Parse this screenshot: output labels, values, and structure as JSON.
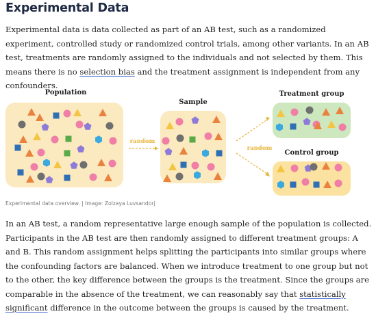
{
  "article": {
    "title": "Experimental Data",
    "intro_before": "Experimental data is data collected as part of an AB test, such as a randomized experiment, controlled study or randomized control trials, among other variants. In an AB test, treatments are randomly assigned to the individuals and not selected by them. This means there is no ",
    "intro_link": "selection bias",
    "intro_after": " and the treatment assignment is independent from any confounders.",
    "body_before": "In an AB test, a random representative large enough sample of the population is collected. Participants in the AB test are then randomly assigned to different treatment groups: A and B. This random assignment helps splitting the participants into similar groups where the confounding factors are balanced. When we introduce treatment to one group but not to the other, the key difference between the groups is the treatment. Since the groups are comparable in the absence of the treatment, we can reasonably say that ",
    "body_link": "statistically significant",
    "body_after": " difference in the outcome between the groups is caused by the treatment."
  },
  "figure": {
    "population_label": "Population",
    "sample_label": "Sample",
    "treatment_label": "Treatment group",
    "control_label": "Control group",
    "random_label_1": "random",
    "random_label_2": "random",
    "caption": "Experimental data overview. | Image: Zolzaya Luvsandorj"
  },
  "colors": {
    "title": "#1f2a44",
    "panel_yellow": "#fbe9bf",
    "panel_green": "#cde7bf",
    "panel_orange": "#fbe2a0",
    "label_random": "#e6b53c",
    "shape_orange": "#e9823d",
    "shape_yellow": "#f4c542",
    "shape_pink": "#ef7fa6",
    "shape_purple": "#8e7bd8",
    "shape_blue": "#2f6fb3",
    "shape_cyan": "#39a9df",
    "shape_gray": "#6f6f6f",
    "shape_green": "#5aaa4a"
  }
}
